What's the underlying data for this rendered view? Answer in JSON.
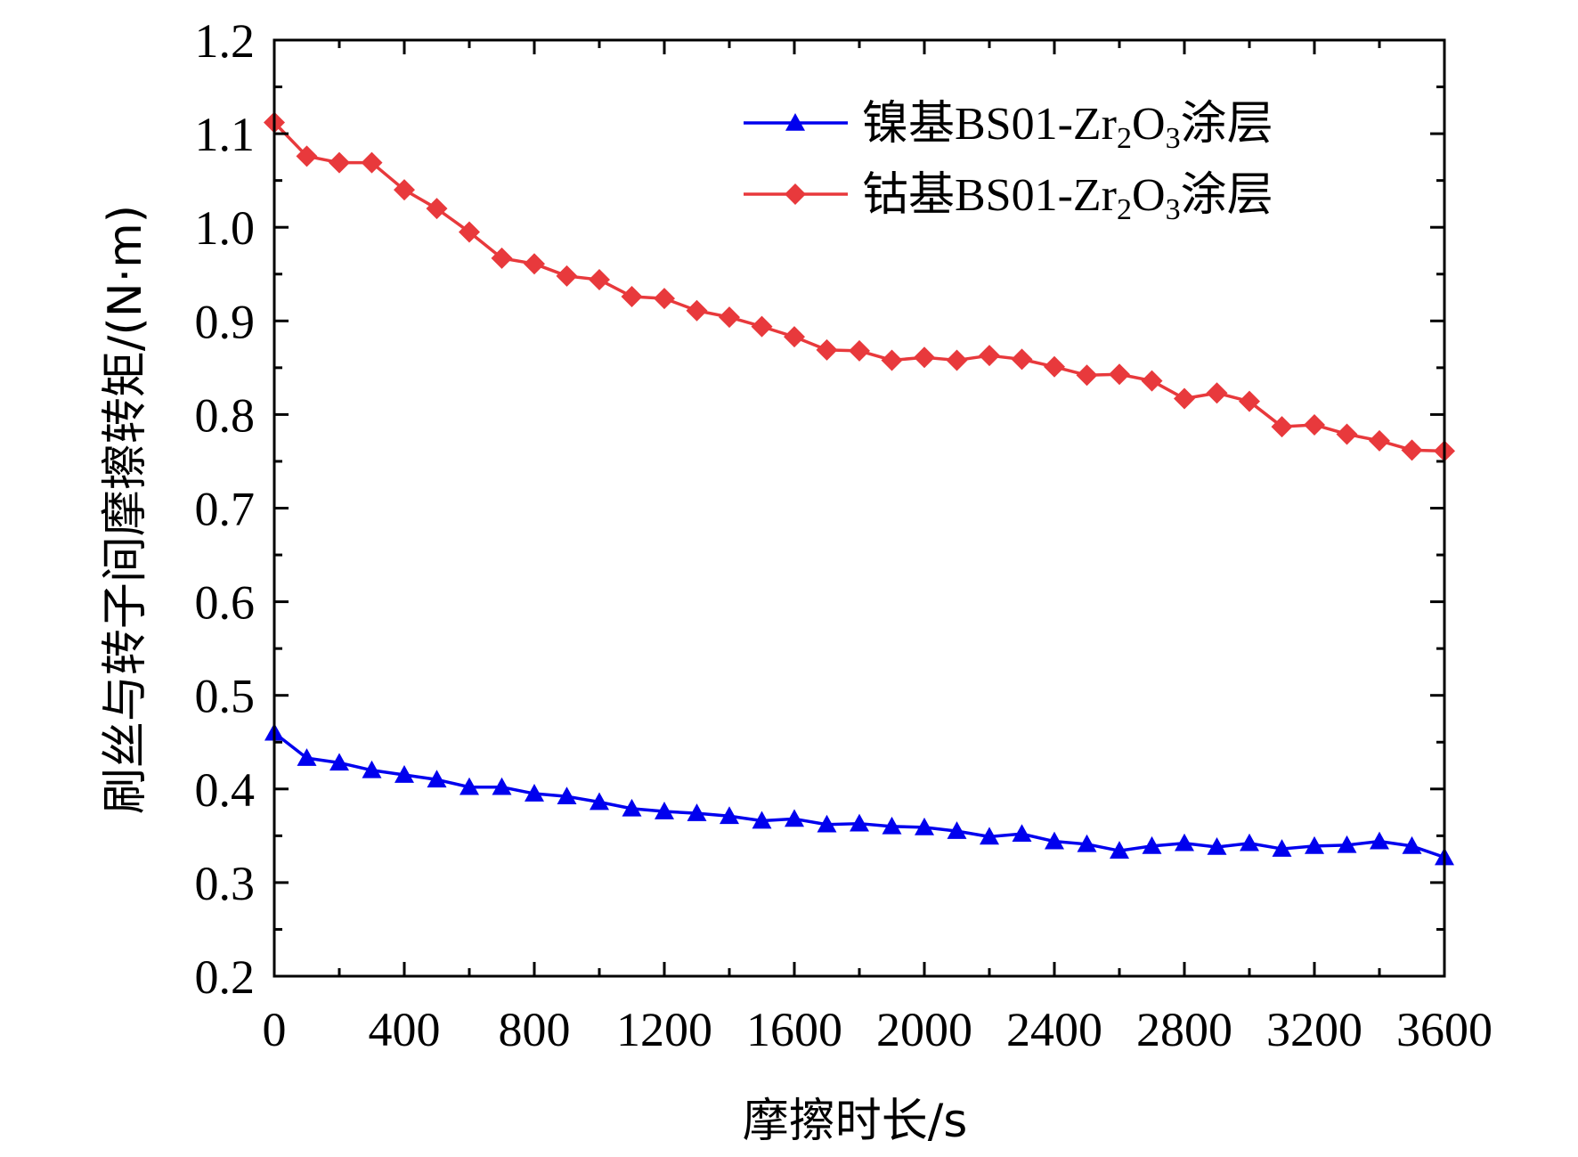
{
  "chart_data": {
    "type": "line",
    "xlabel": "摩擦时长/s",
    "ylabel": "刷丝与转子间摩擦转矩/(N·m)",
    "xlim": [
      0,
      3600
    ],
    "ylim": [
      0.2,
      1.2
    ],
    "xticks": [
      "0",
      "400",
      "800",
      "1200",
      "1600",
      "2000",
      "2400",
      "2800",
      "3200",
      "3600"
    ],
    "yticks": [
      "0.2",
      "0.3",
      "0.4",
      "0.5",
      "0.6",
      "0.7",
      "0.8",
      "0.9",
      "1.0",
      "1.1",
      "1.2"
    ],
    "grid": false,
    "legend_position": "top-right",
    "x": [
      0,
      100,
      200,
      300,
      400,
      500,
      600,
      700,
      800,
      900,
      1000,
      1100,
      1200,
      1300,
      1400,
      1500,
      1600,
      1700,
      1800,
      1900,
      2000,
      2100,
      2200,
      2300,
      2400,
      2500,
      2600,
      2700,
      2800,
      2900,
      3000,
      3100,
      3200,
      3300,
      3400,
      3500,
      3600
    ],
    "series": [
      {
        "name": "镍基BS01-Zr2O3涂层",
        "legend": {
          "pre": "镍基BS01-Zr",
          "sub1": "2",
          "mid": "O",
          "sub2": "3",
          "post": "涂层"
        },
        "color": "#0000ee",
        "marker": "triangle",
        "values": [
          0.46,
          0.433,
          0.428,
          0.42,
          0.415,
          0.41,
          0.402,
          0.402,
          0.395,
          0.392,
          0.386,
          0.379,
          0.376,
          0.374,
          0.371,
          0.366,
          0.368,
          0.362,
          0.363,
          0.36,
          0.359,
          0.355,
          0.349,
          0.352,
          0.344,
          0.341,
          0.334,
          0.339,
          0.342,
          0.338,
          0.342,
          0.336,
          0.339,
          0.34,
          0.344,
          0.339,
          0.327
        ]
      },
      {
        "name": "钴基BS01-Zr2O3涂层",
        "legend": {
          "pre": "钴基BS01-Zr",
          "sub1": "2",
          "mid": "O",
          "sub2": "3",
          "post": "涂层"
        },
        "color": "#e8393c",
        "marker": "diamond",
        "values": [
          1.112,
          1.076,
          1.069,
          1.069,
          1.04,
          1.02,
          0.995,
          0.967,
          0.961,
          0.948,
          0.944,
          0.926,
          0.924,
          0.911,
          0.904,
          0.894,
          0.883,
          0.869,
          0.868,
          0.858,
          0.861,
          0.858,
          0.863,
          0.859,
          0.851,
          0.842,
          0.843,
          0.836,
          0.817,
          0.823,
          0.814,
          0.787,
          0.789,
          0.779,
          0.772,
          0.762,
          0.761
        ]
      }
    ]
  }
}
